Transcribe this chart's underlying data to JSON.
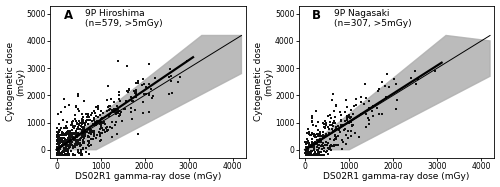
{
  "panels": [
    {
      "label": "A",
      "title": "9P Hiroshima",
      "subtitle": "(n=579, >5mGy)",
      "n_points": 579,
      "xlim": [
        -150,
        4300
      ],
      "ylim": [
        -300,
        5300
      ],
      "xticks": [
        0,
        1000,
        2000,
        3000,
        4000
      ],
      "yticks": [
        0,
        1000,
        2000,
        3000,
        4000,
        5000
      ],
      "xlabel": "DS02R1 gamma-ray dose (mGy)",
      "ylabel": "Cytogenetic dose\n(mGy)",
      "thin_line": {
        "x0": 0,
        "y0": 0,
        "x1": 4200,
        "y1": 4200
      },
      "thick_line": {
        "x0": 0,
        "y0": 0,
        "x1": 3100,
        "y1": 3400
      },
      "band_x": [
        0,
        3300,
        4200,
        4200,
        900,
        0
      ],
      "band_y": [
        0,
        4200,
        4200,
        2800,
        0,
        0
      ],
      "seed": 42,
      "x_scale": 600,
      "noise_scale": 380,
      "max_x": 3200,
      "max_y": 4500
    },
    {
      "label": "B",
      "title": "9P Nagasaki",
      "subtitle": "(n=307, >5mGy)",
      "n_points": 307,
      "xlim": [
        -150,
        4300
      ],
      "ylim": [
        -300,
        5300
      ],
      "xticks": [
        0,
        1000,
        2000,
        3000,
        4000
      ],
      "yticks": [
        0,
        1000,
        2000,
        3000,
        4000,
        5000
      ],
      "xlabel": "DS02R1 gamma-ray dose (mGy)",
      "ylabel": "Cytogenetic dose\n(mGy)",
      "thin_line": {
        "x0": 0,
        "y0": 0,
        "x1": 4200,
        "y1": 4200
      },
      "thick_line": {
        "x0": 0,
        "y0": 0,
        "x1": 3100,
        "y1": 3200
      },
      "band_x": [
        0,
        3200,
        4200,
        4200,
        1000,
        0
      ],
      "band_y": [
        0,
        4200,
        4000,
        2700,
        0,
        0
      ],
      "seed": 99,
      "x_scale": 550,
      "noise_scale": 350,
      "max_x": 3100,
      "max_y": 4600
    }
  ],
  "bg_color": "#ffffff",
  "scatter_color": "#111111",
  "scatter_size": 1.5,
  "band_color": "#b0b0b0",
  "band_alpha": 0.85,
  "thin_line_color": "#000000",
  "thick_line_color": "#000000",
  "thin_lw": 0.7,
  "thick_lw": 1.6,
  "font_size_label": 6.5,
  "font_size_tick": 5.5,
  "font_size_title": 6.5,
  "font_size_panel_label": 8.5
}
